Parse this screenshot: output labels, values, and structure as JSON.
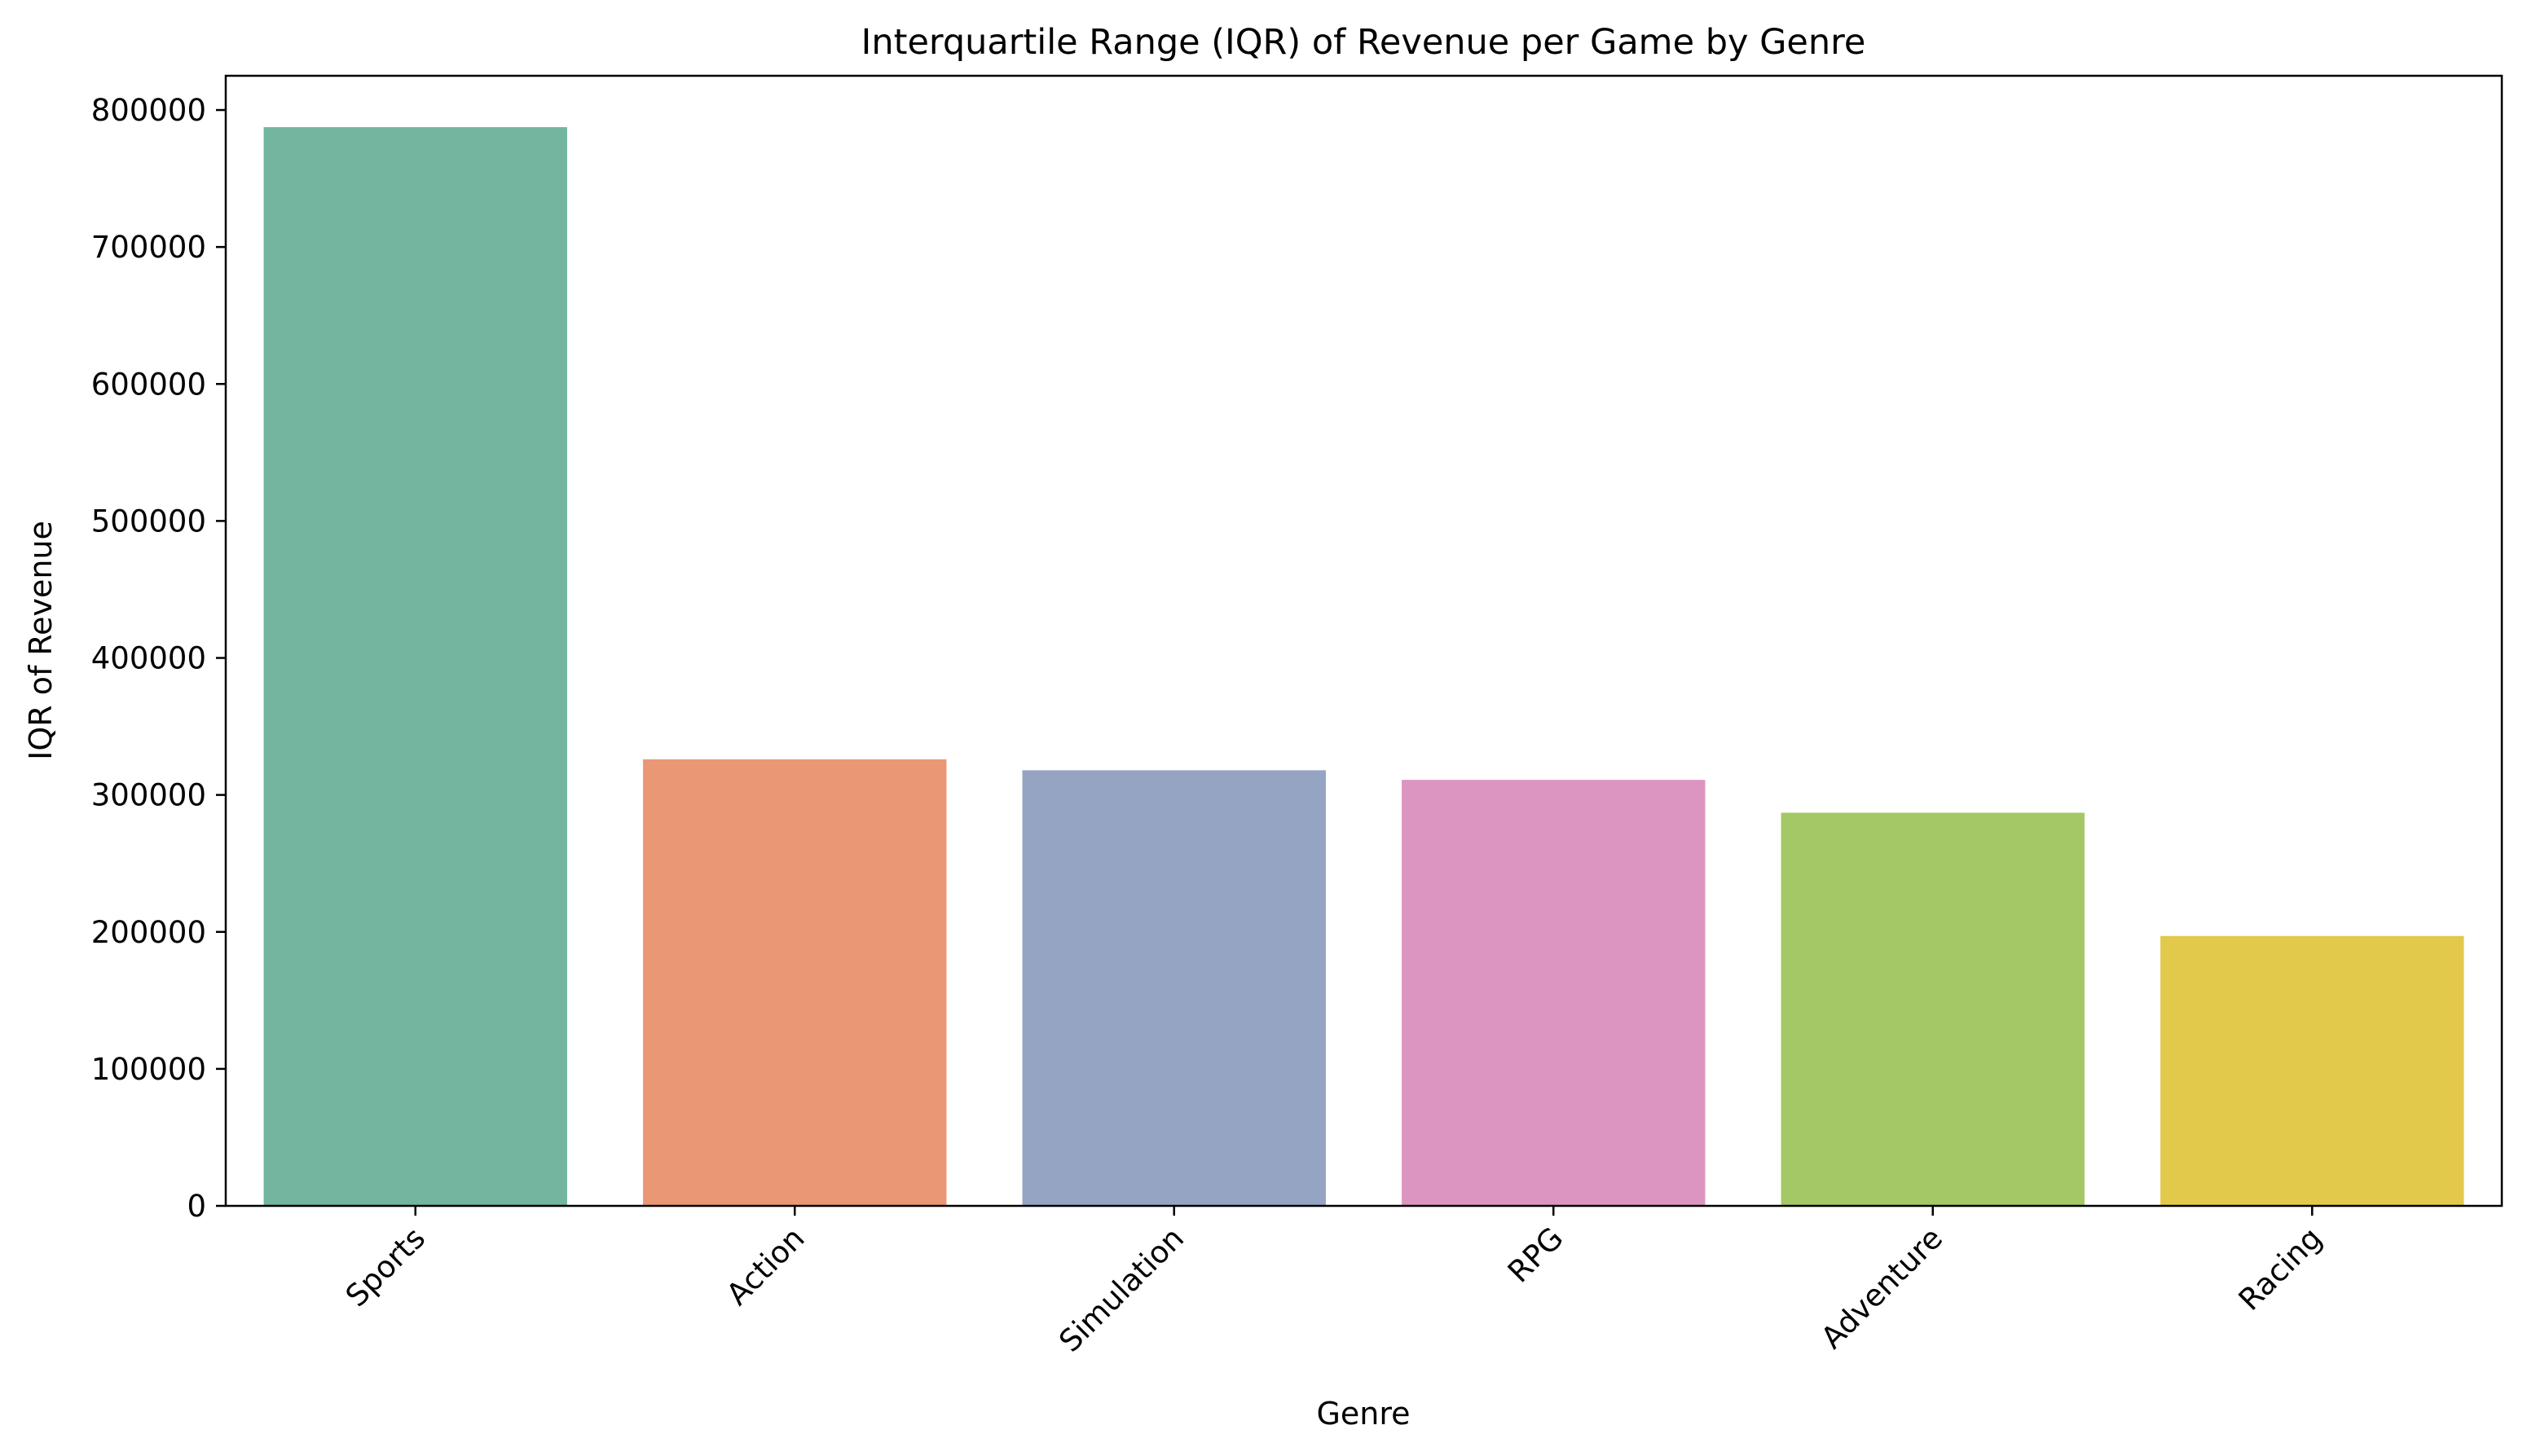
{
  "chart_data": {
    "type": "bar",
    "title": "Interquartile Range (IQR) of Revenue per Game by Genre",
    "xlabel": "Genre",
    "ylabel": "IQR of Revenue",
    "categories": [
      "Sports",
      "Action",
      "Simulation",
      "RPG",
      "Adventure",
      "Racing"
    ],
    "values": [
      787500,
      326000,
      318000,
      311000,
      287000,
      197000
    ],
    "colors": [
      "#73b59f",
      "#ea9775",
      "#95a4c3",
      "#dc95c1",
      "#a3c865",
      "#e2c94b"
    ],
    "ylim": [
      0,
      825000
    ],
    "yticks": [
      0,
      100000,
      200000,
      300000,
      400000,
      500000,
      600000,
      700000,
      800000
    ],
    "ytick_labels": [
      "0",
      "100000",
      "200000",
      "300000",
      "400000",
      "500000",
      "600000",
      "700000",
      "800000"
    ],
    "grid": false,
    "legend": "none"
  }
}
